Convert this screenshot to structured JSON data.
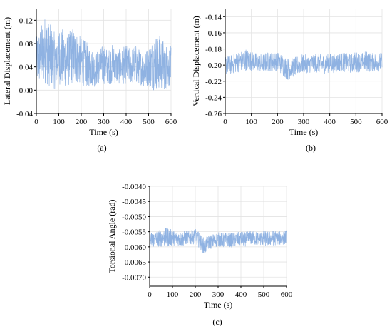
{
  "series_color": "#8fb2e2",
  "grid_color": "#e3e3e3",
  "chart_data": [
    {
      "id": "a",
      "type": "line",
      "panel_label": "(a)",
      "xlabel": "Time (s)",
      "ylabel": "Lateral Displacement (m)",
      "xlim": [
        0,
        600
      ],
      "ylim": [
        -0.04,
        0.14
      ],
      "xticks": [
        0,
        100,
        200,
        300,
        400,
        500,
        600
      ],
      "yticks": [
        -0.04,
        0.0,
        0.04,
        0.08,
        0.12
      ],
      "ytick_labels": [
        "-0.04",
        "0.00",
        "0.04",
        "0.08",
        "0.12"
      ],
      "grid": true,
      "series": [
        {
          "x": [
            0,
            20,
            40,
            60,
            80,
            100,
            120,
            140,
            160,
            180,
            200,
            220,
            240,
            260,
            280,
            300,
            320,
            340,
            360,
            380,
            400,
            420,
            440,
            460,
            480,
            500,
            520,
            540,
            560,
            580,
            600
          ],
          "y": [
            0.05,
            0.06,
            0.07,
            0.06,
            0.05,
            0.06,
            0.055,
            0.05,
            0.06,
            0.055,
            0.05,
            0.045,
            0.04,
            0.035,
            0.04,
            0.045,
            0.04,
            0.045,
            0.04,
            0.04,
            0.045,
            0.04,
            0.045,
            0.04,
            0.035,
            0.04,
            0.045,
            0.05,
            0.045,
            0.04,
            0.04
          ],
          "band": [
            0.04,
            0.05,
            0.06,
            0.055,
            0.05,
            0.05,
            0.05,
            0.045,
            0.05,
            0.045,
            0.04,
            0.04,
            0.035,
            0.03,
            0.03,
            0.035,
            0.03,
            0.035,
            0.03,
            0.03,
            0.035,
            0.03,
            0.035,
            0.03,
            0.03,
            0.035,
            0.045,
            0.05,
            0.045,
            0.04,
            0.035
          ]
        }
      ]
    },
    {
      "id": "b",
      "type": "line",
      "panel_label": "(b)",
      "xlabel": "Time (s)",
      "ylabel": "Vertical Displacement (m)",
      "xlim": [
        0,
        600
      ],
      "ylim": [
        -0.26,
        -0.13
      ],
      "xticks": [
        0,
        100,
        200,
        300,
        400,
        500,
        600
      ],
      "yticks": [
        -0.26,
        -0.24,
        -0.22,
        -0.2,
        -0.18,
        -0.16,
        -0.14
      ],
      "ytick_labels": [
        "-0.26",
        "-0.24",
        "-0.22",
        "-0.20",
        "-0.18",
        "-0.16",
        "-0.14"
      ],
      "grid": true,
      "series": [
        {
          "x": [
            0,
            20,
            40,
            60,
            80,
            100,
            120,
            140,
            160,
            180,
            200,
            220,
            240,
            260,
            280,
            300,
            320,
            340,
            360,
            380,
            400,
            420,
            440,
            460,
            480,
            500,
            520,
            540,
            560,
            580,
            600
          ],
          "y": [
            -0.2,
            -0.2,
            -0.197,
            -0.195,
            -0.193,
            -0.195,
            -0.197,
            -0.198,
            -0.196,
            -0.196,
            -0.195,
            -0.2,
            -0.205,
            -0.203,
            -0.2,
            -0.198,
            -0.199,
            -0.197,
            -0.198,
            -0.199,
            -0.197,
            -0.198,
            -0.196,
            -0.197,
            -0.198,
            -0.196,
            -0.197,
            -0.195,
            -0.197,
            -0.196,
            -0.197
          ],
          "band": [
            0.012,
            0.012,
            0.013,
            0.013,
            0.014,
            0.012,
            0.012,
            0.012,
            0.012,
            0.012,
            0.012,
            0.013,
            0.014,
            0.012,
            0.012,
            0.012,
            0.011,
            0.012,
            0.012,
            0.012,
            0.012,
            0.012,
            0.012,
            0.012,
            0.012,
            0.013,
            0.012,
            0.013,
            0.012,
            0.012,
            0.012
          ]
        }
      ]
    },
    {
      "id": "c",
      "type": "line",
      "panel_label": "(c)",
      "xlabel": "Time (s)",
      "ylabel": "Torsional Angle (rad)",
      "xlim": [
        0,
        600
      ],
      "ylim": [
        -0.0073,
        -0.004
      ],
      "xticks": [
        0,
        100,
        200,
        300,
        400,
        500,
        600
      ],
      "yticks": [
        -0.007,
        -0.0065,
        -0.006,
        -0.0055,
        -0.005,
        -0.0045,
        -0.004
      ],
      "ytick_labels": [
        "-0.0070",
        "-0.0065",
        "-0.0060",
        "-0.0055",
        "-0.0050",
        "-0.0045",
        "-0.0040"
      ],
      "grid": true,
      "series": [
        {
          "x": [
            0,
            20,
            40,
            60,
            80,
            100,
            120,
            140,
            160,
            180,
            200,
            220,
            240,
            260,
            280,
            300,
            320,
            340,
            360,
            380,
            400,
            420,
            440,
            460,
            480,
            500,
            520,
            540,
            560,
            580,
            600
          ],
          "y": [
            -0.0058,
            -0.00575,
            -0.00572,
            -0.0057,
            -0.00568,
            -0.0057,
            -0.00572,
            -0.00575,
            -0.0057,
            -0.0057,
            -0.00565,
            -0.0058,
            -0.006,
            -0.00585,
            -0.0058,
            -0.00575,
            -0.00578,
            -0.00577,
            -0.00578,
            -0.00575,
            -0.00573,
            -0.00575,
            -0.0057,
            -0.00572,
            -0.00574,
            -0.00572,
            -0.00574,
            -0.0057,
            -0.00572,
            -0.0057,
            -0.00568
          ],
          "band": [
            0.0003,
            0.00025,
            0.00028,
            0.0003,
            0.00032,
            0.00026,
            0.00025,
            0.00025,
            0.00024,
            0.00024,
            0.00025,
            0.00026,
            0.00028,
            0.00024,
            0.00024,
            0.00024,
            0.00024,
            0.00024,
            0.00024,
            0.00024,
            0.00024,
            0.00024,
            0.00024,
            0.00024,
            0.00024,
            0.00026,
            0.00024,
            0.00026,
            0.00024,
            0.00024,
            0.00024
          ]
        }
      ]
    }
  ]
}
